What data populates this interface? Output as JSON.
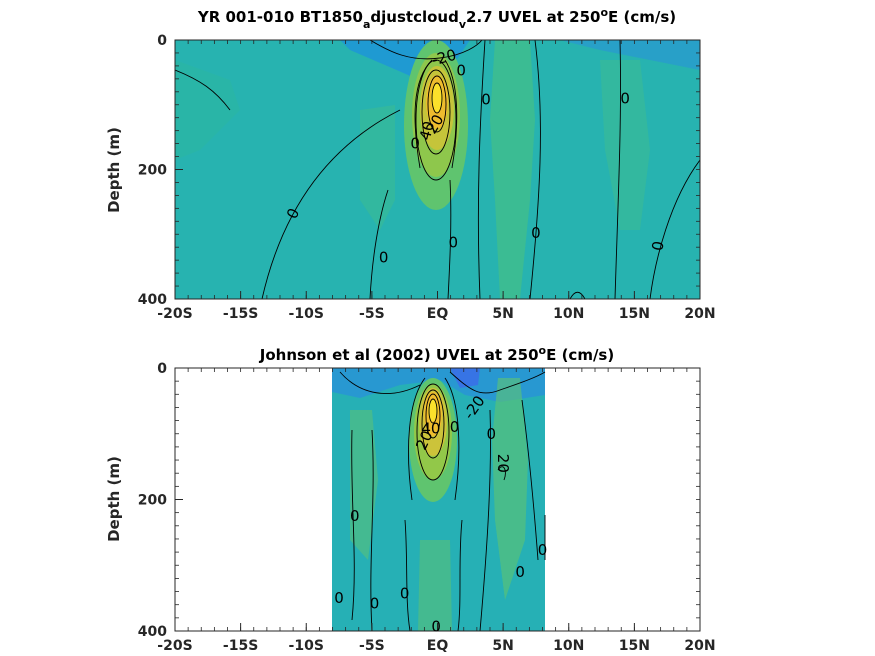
{
  "chart_data": [
    {
      "type": "contour",
      "title": {
        "main": "YR 001-010 BT1850",
        "sub1": "a",
        "mid": "djustcloud",
        "sub2": "v",
        "tail": "2.7 UVEL at 250",
        "sup": "o",
        "end": "E (cm/s)"
      },
      "ylabel": "Depth (m)",
      "xlim": [
        -20,
        20
      ],
      "ylim": [
        0,
        400
      ],
      "y_reversed": true,
      "xticks": [
        -20,
        -15,
        -10,
        -5,
        0,
        5,
        10,
        15,
        20
      ],
      "xtick_labels": [
        "-20S",
        "-15S",
        "-10S",
        "-5S",
        "EQ",
        "5N",
        "10N",
        "15N",
        "20N"
      ],
      "yticks": [
        0,
        200,
        400
      ],
      "ytick_labels": [
        "0",
        "200",
        "400"
      ],
      "data_extent_x": [
        -20,
        20
      ],
      "colormap": "parula",
      "core": {
        "lat": -0.2,
        "depth": 90,
        "max_speed": 80
      },
      "contour_labels": [
        {
          "text": "-20",
          "lat": 0.5,
          "depth": 27,
          "rot": -15
        },
        {
          "text": "0",
          "lat": 1.8,
          "depth": 47,
          "rot": 0
        },
        {
          "text": "20",
          "lat": -0.2,
          "depth": 130,
          "rot": -60
        },
        {
          "text": "40",
          "lat": -0.8,
          "depth": 140,
          "rot": -75
        },
        {
          "text": "0",
          "lat": -1.7,
          "depth": 160,
          "rot": 0
        },
        {
          "text": "0",
          "lat": 3.7,
          "depth": 92,
          "rot": 0
        },
        {
          "text": "0",
          "lat": 14.3,
          "depth": 90,
          "rot": 0
        },
        {
          "text": "0",
          "lat": -11,
          "depth": 268,
          "rot": -65
        },
        {
          "text": "0",
          "lat": 1.2,
          "depth": 313,
          "rot": 0
        },
        {
          "text": "0",
          "lat": 7.5,
          "depth": 298,
          "rot": 0
        },
        {
          "text": "0",
          "lat": 16.8,
          "depth": 318,
          "rot": -80
        },
        {
          "text": "0",
          "lat": -4.1,
          "depth": 336,
          "rot": 0
        }
      ]
    },
    {
      "type": "contour",
      "title": {
        "main": "Johnson et al (2002) UVEL at 250",
        "sup": "o",
        "end": "E (cm/s)"
      },
      "ylabel": "Depth (m)",
      "xlim": [
        -20,
        20
      ],
      "ylim": [
        0,
        400
      ],
      "y_reversed": true,
      "xticks": [
        -20,
        -15,
        -10,
        -5,
        0,
        5,
        10,
        15,
        20
      ],
      "xtick_labels": [
        "-20S",
        "-15S",
        "-10S",
        "-5S",
        "EQ",
        "5N",
        "10N",
        "15N",
        "20N"
      ],
      "yticks": [
        0,
        200,
        400
      ],
      "ytick_labels": [
        "0",
        "200",
        "400"
      ],
      "data_extent_x": [
        -8,
        8.2
      ],
      "colormap": "parula",
      "core": {
        "lat": -0.2,
        "depth": 75,
        "max_speed": 80
      },
      "contour_labels": [
        {
          "text": "-20",
          "lat": 2.8,
          "depth": 60,
          "rot": -55
        },
        {
          "text": "40",
          "lat": -0.5,
          "depth": 92,
          "rot": 0
        },
        {
          "text": "20",
          "lat": -1.0,
          "depth": 110,
          "rot": -65
        },
        {
          "text": "0",
          "lat": 1.3,
          "depth": 90,
          "rot": 0
        },
        {
          "text": "0",
          "lat": 4.1,
          "depth": 100,
          "rot": 0
        },
        {
          "text": "20",
          "lat": 5.0,
          "depth": 145,
          "rot": 90
        },
        {
          "text": "0",
          "lat": -6.3,
          "depth": 225,
          "rot": 0
        },
        {
          "text": "0",
          "lat": 8.0,
          "depth": 277,
          "rot": 0
        },
        {
          "text": "0",
          "lat": 6.3,
          "depth": 310,
          "rot": 0
        },
        {
          "text": "0",
          "lat": -7.5,
          "depth": 350,
          "rot": 0
        },
        {
          "text": "0",
          "lat": -4.8,
          "depth": 358,
          "rot": 0
        },
        {
          "text": "0",
          "lat": -2.5,
          "depth": 343,
          "rot": 0
        },
        {
          "text": "0",
          "lat": -0.1,
          "depth": 393,
          "rot": 0
        }
      ]
    }
  ]
}
